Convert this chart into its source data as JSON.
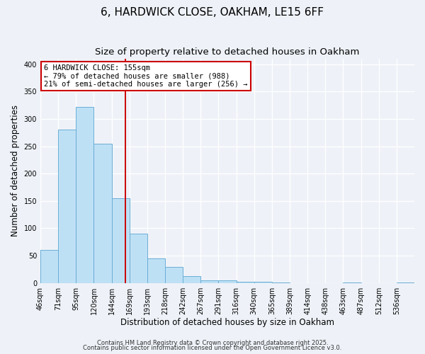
{
  "title": "6, HARDWICK CLOSE, OAKHAM, LE15 6FF",
  "subtitle": "Size of property relative to detached houses in Oakham",
  "xlabel": "Distribution of detached houses by size in Oakham",
  "ylabel": "Number of detached properties",
  "bar_values": [
    60,
    280,
    322,
    255,
    155,
    90,
    45,
    30,
    12,
    5,
    5,
    2,
    2,
    1,
    0,
    0,
    0,
    1,
    0,
    0,
    1
  ],
  "bin_labels": [
    "46sqm",
    "71sqm",
    "95sqm",
    "120sqm",
    "144sqm",
    "169sqm",
    "193sqm",
    "218sqm",
    "242sqm",
    "267sqm",
    "291sqm",
    "316sqm",
    "340sqm",
    "365sqm",
    "389sqm",
    "414sqm",
    "438sqm",
    "463sqm",
    "487sqm",
    "512sqm",
    "536sqm"
  ],
  "bar_color": "#bee0f5",
  "bar_edge_color": "#6aaed6",
  "vline_x_index": 4.79,
  "vline_color": "#cc0000",
  "ylim": [
    0,
    410
  ],
  "yticks": [
    0,
    50,
    100,
    150,
    200,
    250,
    300,
    350,
    400
  ],
  "annotation_line1": "6 HARDWICK CLOSE: 155sqm",
  "annotation_line2": "← 79% of detached houses are smaller (988)",
  "annotation_line3": "21% of semi-detached houses are larger (256) →",
  "annotation_box_color": "#ffffff",
  "annotation_box_edge_color": "#cc0000",
  "footer1": "Contains HM Land Registry data © Crown copyright and database right 2025.",
  "footer2": "Contains public sector information licensed under the Open Government Licence v3.0.",
  "bg_color": "#eef2f8",
  "grid_color": "#ffffff",
  "title_fontsize": 11,
  "subtitle_fontsize": 9.5,
  "ylabel_fontsize": 8.5,
  "xlabel_fontsize": 8.5,
  "tick_fontsize": 7,
  "footer_fontsize": 6
}
